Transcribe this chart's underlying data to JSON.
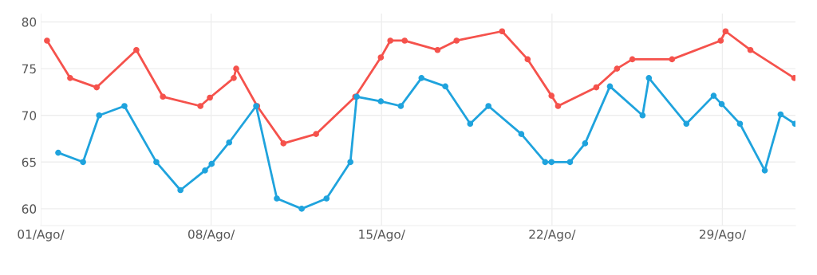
{
  "chart_data": {
    "type": "line",
    "series": [
      {
        "color": "#f5524c",
        "x": [
          1.26,
          2.21,
          3.3,
          4.93,
          6.02,
          7.56,
          7.95,
          8.93,
          9.03,
          9.89,
          10.97,
          12.31,
          13.92,
          14.97,
          15.36,
          15.95,
          17.3,
          18.08,
          19.95,
          21.0,
          21.98,
          22.25,
          23.82,
          24.67,
          25.3,
          26.93,
          28.93,
          29.13,
          30.15,
          31.95
        ],
        "values": [
          78.0,
          74.0,
          73.0,
          77.0,
          72.0,
          71.0,
          71.9,
          74.0,
          75.0,
          71.0,
          67.0,
          68.0,
          72.0,
          76.2,
          78.0,
          78.0,
          77.0,
          78.0,
          79.0,
          76.0,
          72.1,
          71.0,
          73.0,
          75.0,
          76.0,
          76.0,
          78.0,
          79.0,
          77.0,
          74.0
        ]
      },
      {
        "color": "#1fa3dd",
        "x": [
          1.72,
          2.74,
          3.4,
          4.44,
          5.75,
          6.74,
          7.75,
          8.02,
          8.74,
          9.85,
          10.7,
          11.72,
          12.74,
          13.72,
          13.98,
          14.97,
          15.79,
          16.64,
          17.62,
          18.64,
          19.39,
          20.74,
          21.72,
          21.98,
          22.74,
          23.36,
          24.38,
          25.72,
          25.98,
          27.52,
          28.64,
          28.97,
          29.72,
          30.74,
          31.39,
          31.98
        ],
        "values": [
          66.0,
          65.0,
          70.0,
          71.0,
          65.0,
          62.0,
          64.1,
          64.8,
          67.1,
          71.0,
          61.1,
          60.0,
          61.1,
          65.0,
          72.0,
          71.5,
          71.0,
          74.0,
          73.1,
          69.1,
          71.0,
          68.0,
          65.0,
          65.0,
          65.0,
          67.0,
          73.1,
          70.0,
          74.0,
          69.1,
          72.1,
          71.2,
          69.1,
          64.1,
          70.1,
          69.1
        ]
      }
    ],
    "xlim": [
      1,
      32
    ],
    "xticks": [
      {
        "value": 1,
        "label": "01/Ago/"
      },
      {
        "value": 8,
        "label": "08/Ago/"
      },
      {
        "value": 15,
        "label": "15/Ago/"
      },
      {
        "value": 22,
        "label": "22/Ago/"
      },
      {
        "value": 29,
        "label": "29/Ago/"
      }
    ],
    "ylim": [
      58.2,
      80.9
    ],
    "yticks": [
      60,
      65,
      70,
      75,
      80
    ],
    "grid": true,
    "marker": "circle",
    "line_style": "solid"
  }
}
